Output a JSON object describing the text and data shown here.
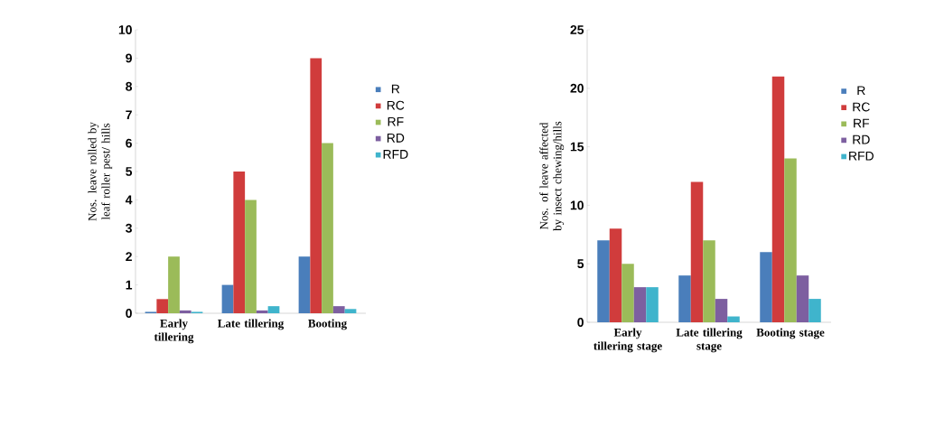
{
  "chart_data": [
    {
      "type": "bar",
      "ylabel": "Nos. leave rolled by leaf roller pest/ hills",
      "categories": [
        "Early tillering",
        "Late tillering",
        "Booting"
      ],
      "ylim": [
        0,
        10
      ],
      "yticks": [
        0,
        1,
        2,
        3,
        4,
        5,
        6,
        7,
        8,
        9,
        10
      ],
      "legend": "right",
      "grid": false,
      "series": [
        {
          "name": "R",
          "color": "#4a7ebb",
          "values": [
            0.05,
            1,
            2
          ]
        },
        {
          "name": "RC",
          "color": "#d03c3c",
          "values": [
            0.5,
            5,
            9
          ]
        },
        {
          "name": "RF",
          "color": "#9bbb59",
          "values": [
            2,
            4,
            6
          ]
        },
        {
          "name": "RD",
          "color": "#7d5fa0",
          "values": [
            0.1,
            0.1,
            0.25
          ]
        },
        {
          "name": "RFD",
          "color": "#3fb4cc",
          "values": [
            0.05,
            0.25,
            0.15
          ]
        }
      ]
    },
    {
      "type": "bar",
      "ylabel": "Nos. of leave affected by insect chewing/hills",
      "categories": [
        "Early tillering stage",
        "Late tillering stage",
        "Booting stage"
      ],
      "ylim": [
        0,
        25
      ],
      "yticks": [
        0,
        5,
        10,
        15,
        20,
        25
      ],
      "legend": "right",
      "grid": false,
      "series": [
        {
          "name": "R",
          "color": "#4a7ebb",
          "values": [
            7,
            4,
            6
          ]
        },
        {
          "name": "RC",
          "color": "#d03c3c",
          "values": [
            8,
            12,
            21
          ]
        },
        {
          "name": "RF",
          "color": "#9bbb59",
          "values": [
            5,
            7,
            14
          ]
        },
        {
          "name": "RD",
          "color": "#7d5fa0",
          "values": [
            3,
            2,
            4
          ]
        },
        {
          "name": "RFD",
          "color": "#3fb4cc",
          "values": [
            3,
            0.5,
            2
          ]
        }
      ]
    }
  ]
}
